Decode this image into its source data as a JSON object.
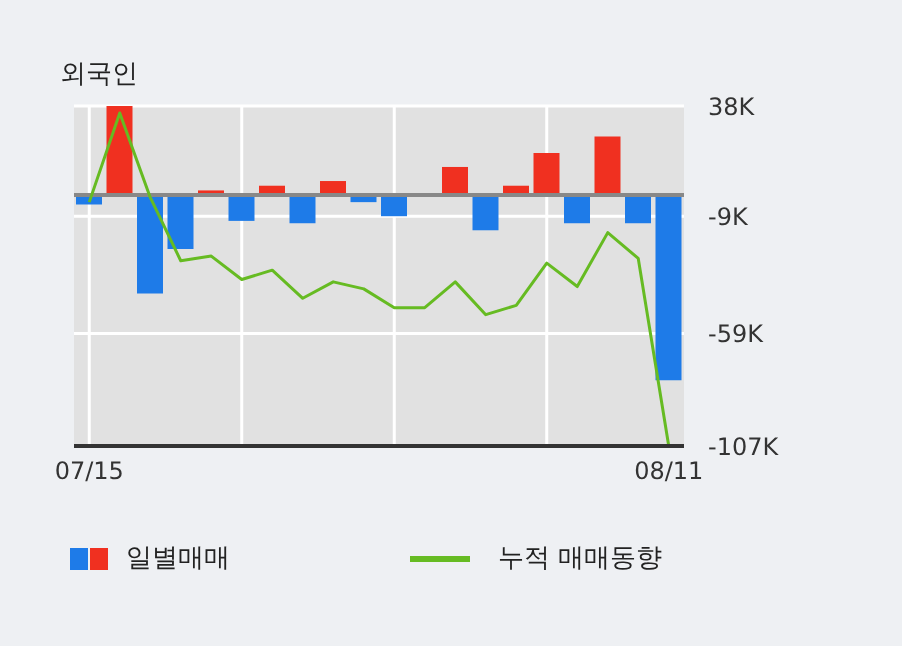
{
  "chart_data": {
    "type": "bar",
    "title": "외국인",
    "categories": [
      "07/15",
      null,
      null,
      null,
      null,
      null,
      null,
      null,
      null,
      null,
      null,
      null,
      null,
      null,
      null,
      null,
      null,
      null,
      null,
      "08/11"
    ],
    "series": [
      {
        "name": "일별매매",
        "values": [
          -4,
          38,
          -42,
          -23,
          2,
          -11,
          4,
          -12,
          6,
          -3,
          -9,
          0,
          12,
          -15,
          4,
          18,
          -12,
          25,
          -12,
          -79
        ],
        "colors": [
          "#1e7be8",
          "#f03020",
          "#1e7be8",
          "#1e7be8",
          "#f03020",
          "#1e7be8",
          "#f03020",
          "#1e7be8",
          "#f03020",
          "#1e7be8",
          "#1e7be8",
          "#f03020",
          "#f03020",
          "#1e7be8",
          "#f03020",
          "#f03020",
          "#1e7be8",
          "#f03020",
          "#1e7be8",
          "#1e7be8"
        ]
      },
      {
        "name": "누적 매매동향",
        "type": "line",
        "color": "#66bb22",
        "values": [
          -3,
          35,
          -1,
          -28,
          -26,
          -36,
          -32,
          -44,
          -37,
          -40,
          -48,
          -48,
          -37,
          -51,
          -47,
          -29,
          -39,
          -16,
          -27,
          -107
        ]
      }
    ],
    "ylim": [
      -107,
      38
    ],
    "yticks": [
      {
        "value": 38,
        "label": "38K"
      },
      {
        "value": -9,
        "label": "-9K"
      },
      {
        "value": -59,
        "label": "-59K"
      },
      {
        "value": -107,
        "label": "-107K"
      }
    ],
    "ref_lines": [
      {
        "axis": "y",
        "value": 0,
        "color": "#888888"
      }
    ],
    "grid": true,
    "legend": "bottom"
  }
}
